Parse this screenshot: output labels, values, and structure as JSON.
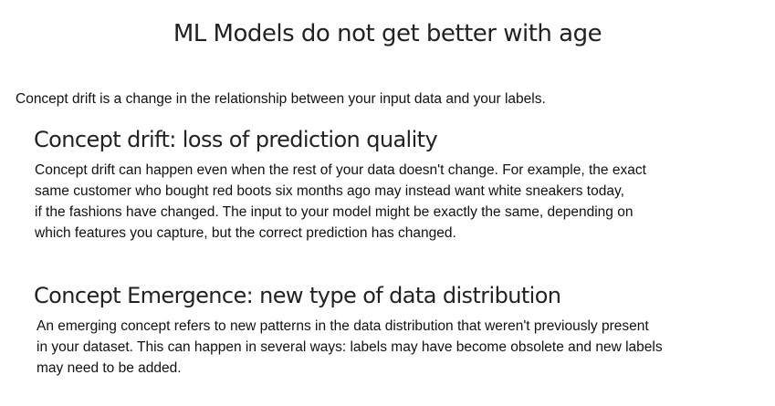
{
  "title": "ML Models do not get better with age",
  "intro": "Concept drift is a change in the relationship between your input data and your labels.",
  "sections": [
    {
      "heading": "Concept drift: loss of prediction quality",
      "lines": [
        "Concept drift can happen even when the rest of your data doesn't change. For example, the exact",
        "same customer who bought red boots six months ago may instead want white sneakers today,",
        "if the fashions have changed. The input to your model might be exactly the same, depending on",
        "which features you capture, but the correct prediction has changed."
      ]
    },
    {
      "heading": "Concept Emergence: new type of data distribution",
      "lines": [
        "An emerging concept refers to new patterns in the data distribution that weren't previously present",
        "in your dataset. This can happen in several ways: labels may have become obsolete and new labels",
        "may need to be added."
      ]
    }
  ]
}
